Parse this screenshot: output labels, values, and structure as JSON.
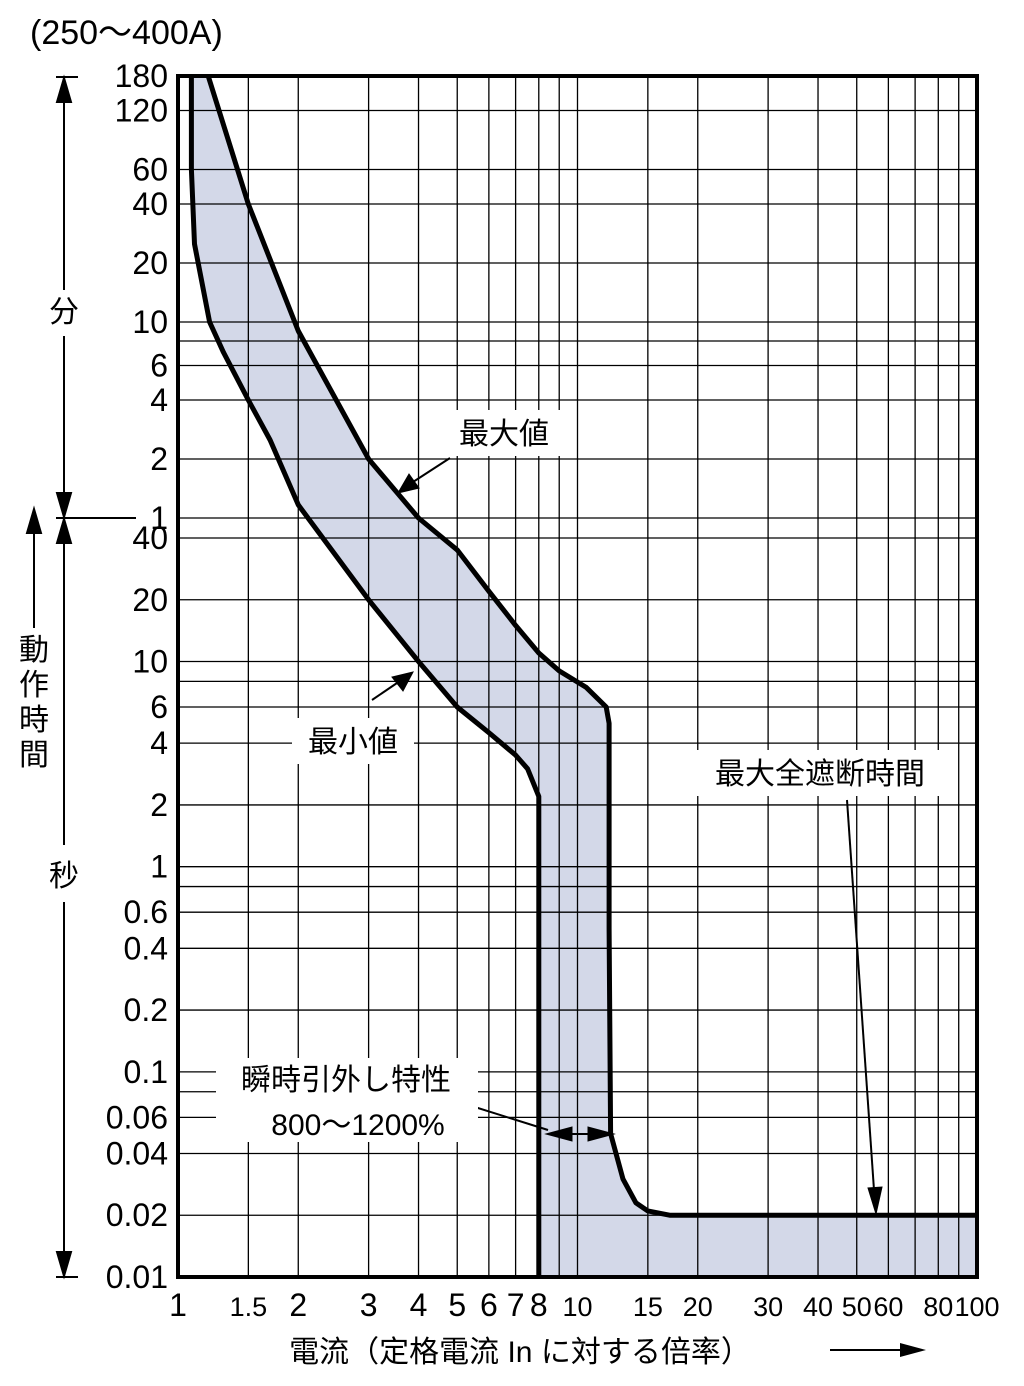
{
  "chart_data": {
    "type": "area",
    "title": "(250〜400A)",
    "xlabel": "電流（定格電流 In に対する倍率）",
    "ylabel": "動作時間",
    "x_scale": "log",
    "y_scale": "log",
    "xlim": [
      1,
      100
    ],
    "y_units": {
      "minutes": "分",
      "seconds": "秒"
    },
    "x_ticks": [
      "1",
      "1.5",
      "2",
      "3",
      "4",
      "5",
      "6",
      "7",
      "8",
      "10",
      "15",
      "20",
      "30",
      "40",
      "50",
      "60",
      "80",
      "100"
    ],
    "y_ticks_minutes": [
      "180",
      "120",
      "60",
      "40",
      "20",
      "10",
      "6",
      "4",
      "2",
      "1"
    ],
    "y_ticks_seconds": [
      "40",
      "20",
      "10",
      "6",
      "4",
      "2",
      "1",
      "0.6",
      "0.4",
      "0.2",
      "0.1",
      "0.06",
      "0.04",
      "0.02",
      "0.01"
    ],
    "series": [
      {
        "name": "最大値",
        "x": [
          1.19,
          1.5,
          2,
          3,
          4,
          5,
          6,
          7,
          8,
          9,
          10.5,
          11.8,
          12,
          12,
          12.1,
          13,
          14,
          15,
          17,
          20,
          30,
          50,
          100
        ],
        "y_seconds": [
          10800,
          2400,
          540,
          120,
          60,
          35,
          22,
          15,
          11,
          9,
          7.5,
          6,
          5,
          0.5,
          0.05,
          0.03,
          0.023,
          0.021,
          0.02,
          0.02,
          0.02,
          0.02,
          0.02
        ]
      },
      {
        "name": "最小値",
        "x": [
          1.08,
          1.08,
          1.1,
          1.2,
          1.3,
          1.5,
          1.7,
          2,
          3,
          4,
          5,
          6,
          7,
          7.5,
          8,
          8,
          8
        ],
        "y_seconds": [
          10800,
          3600,
          1500,
          600,
          420,
          240,
          150,
          70,
          20,
          10,
          6,
          4.5,
          3.5,
          3.0,
          2.2,
          0.1,
          0.01
        ]
      }
    ],
    "annotations": {
      "max": "最大値",
      "min": "最小値",
      "interrupt": "最大全遮断時間",
      "instant_line1": "瞬時引外し特性",
      "instant_line2": "800〜1200%"
    },
    "grid": true
  }
}
